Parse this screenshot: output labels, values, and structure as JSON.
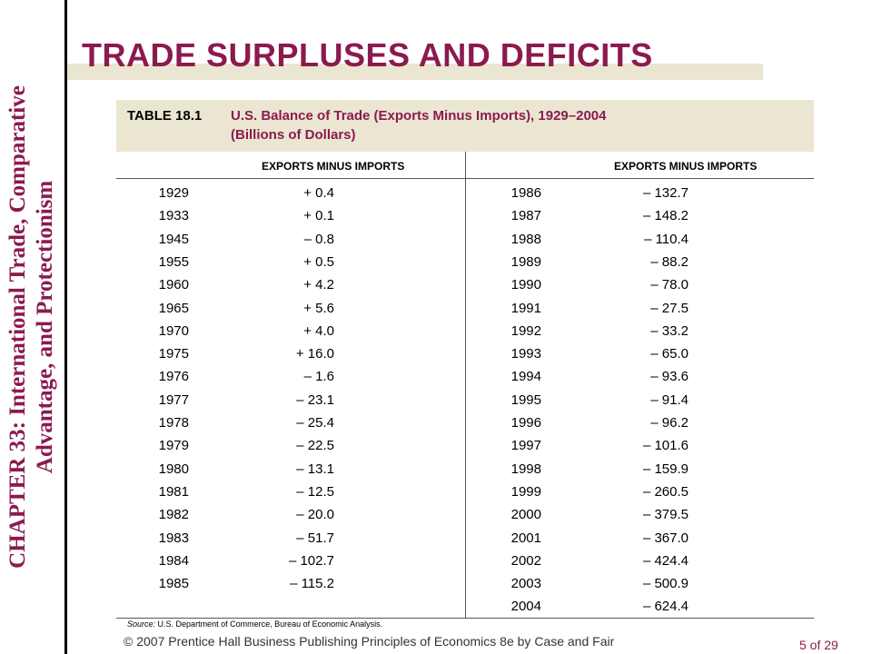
{
  "sidebar": {
    "line1": "CHAPTER 33:  International Trade, Comparative",
    "line2": "Advantage, and Protectionism"
  },
  "title": "TRADE SURPLUSES AND DEFICITS",
  "table": {
    "label": "TABLE 18.1",
    "caption": "U.S. Balance of Trade (Exports Minus Imports), 1929–2004",
    "units": "(Billions of Dollars)",
    "column_header_left": "EXPORTS MINUS IMPORTS",
    "column_header_right": "EXPORTS MINUS IMPORTS",
    "left_rows": [
      {
        "year": "1929",
        "value": "+ 0.4"
      },
      {
        "year": "1933",
        "value": "+ 0.1"
      },
      {
        "year": "1945",
        "value": "– 0.8"
      },
      {
        "year": "1955",
        "value": "+ 0.5"
      },
      {
        "year": "1960",
        "value": "+ 4.2"
      },
      {
        "year": "1965",
        "value": "+ 5.6"
      },
      {
        "year": "1970",
        "value": "+ 4.0"
      },
      {
        "year": "1975",
        "value": "+ 16.0"
      },
      {
        "year": "1976",
        "value": "– 1.6"
      },
      {
        "year": "1977",
        "value": "– 23.1"
      },
      {
        "year": "1978",
        "value": "– 25.4"
      },
      {
        "year": "1979",
        "value": "– 22.5"
      },
      {
        "year": "1980",
        "value": "– 13.1"
      },
      {
        "year": "1981",
        "value": "– 12.5"
      },
      {
        "year": "1982",
        "value": "– 20.0"
      },
      {
        "year": "1983",
        "value": "– 51.7"
      },
      {
        "year": "1984",
        "value": "– 102.7"
      },
      {
        "year": "1985",
        "value": "– 115.2"
      }
    ],
    "right_rows": [
      {
        "year": "1986",
        "value": "– 132.7"
      },
      {
        "year": "1987",
        "value": "– 148.2"
      },
      {
        "year": "1988",
        "value": "– 110.4"
      },
      {
        "year": "1989",
        "value": "– 88.2"
      },
      {
        "year": "1990",
        "value": "– 78.0"
      },
      {
        "year": "1991",
        "value": "– 27.5"
      },
      {
        "year": "1992",
        "value": "– 33.2"
      },
      {
        "year": "1993",
        "value": "– 65.0"
      },
      {
        "year": "1994",
        "value": "– 93.6"
      },
      {
        "year": "1995",
        "value": "– 91.4"
      },
      {
        "year": "1996",
        "value": "– 96.2"
      },
      {
        "year": "1997",
        "value": "– 101.6"
      },
      {
        "year": "1998",
        "value": "– 159.9"
      },
      {
        "year": "1999",
        "value": "– 260.5"
      },
      {
        "year": "2000",
        "value": "– 379.5"
      },
      {
        "year": "2001",
        "value": "– 367.0"
      },
      {
        "year": "2002",
        "value": "– 424.4"
      },
      {
        "year": "2003",
        "value": "– 500.9"
      },
      {
        "year": "2004",
        "value": "– 624.4"
      }
    ],
    "source_label": "Source:",
    "source_text": "U.S. Department of Commerce, Bureau of Economic Analysis."
  },
  "footer": {
    "copyright": "© 2007 Prentice Hall Business Publishing   Principles of Economics 8e by Case and Fair",
    "page": "5 of 29"
  },
  "colors": {
    "accent": "#8b1a4f",
    "band": "#ebe6d1"
  }
}
